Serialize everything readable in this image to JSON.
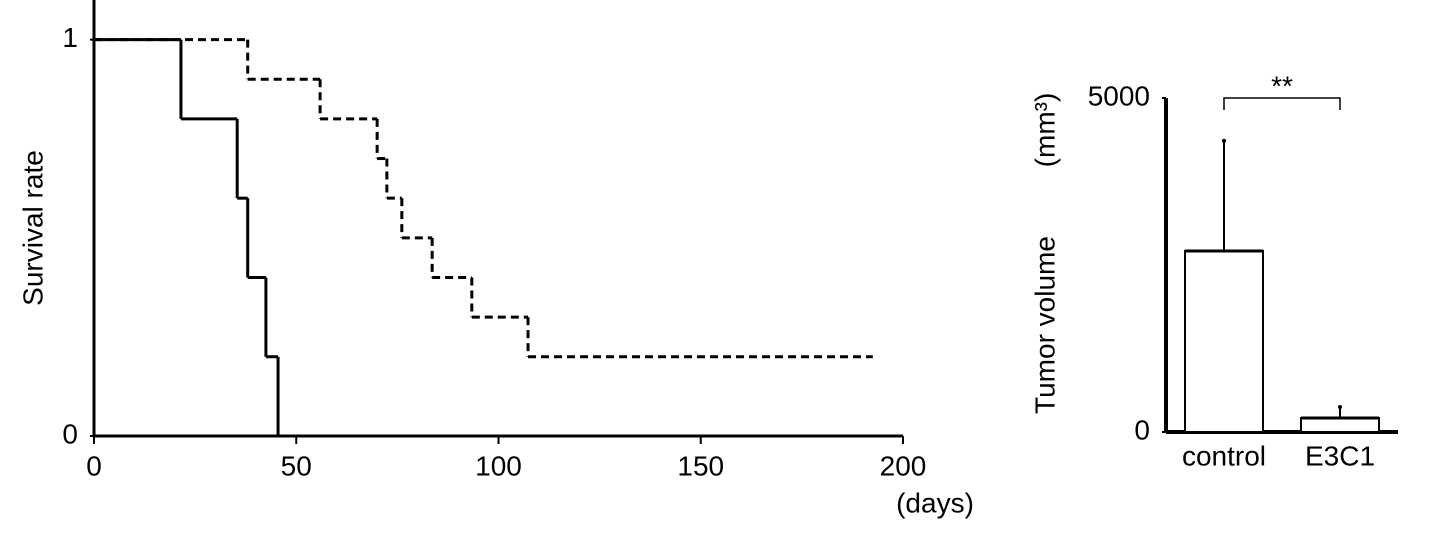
{
  "chart_data": [
    {
      "type": "step",
      "ylabel": "Survival rate",
      "xlabel": "(days)",
      "xlim": [
        0,
        200
      ],
      "xticks": [
        0,
        50,
        100,
        150,
        200
      ],
      "ylim": [
        0,
        1.1
      ],
      "yticks": [
        0,
        1
      ],
      "series": [
        {
          "color": "#000000",
          "dash": false,
          "x": [
            0,
            21.5,
            35.4,
            38,
            42.5,
            45.5
          ],
          "values": [
            1,
            0.8,
            0.6,
            0.4,
            0.2,
            0
          ]
        },
        {
          "color": "#000000",
          "dash": true,
          "x": [
            0,
            38,
            55.9,
            70,
            72.4,
            76.1,
            83.6,
            93.4,
            107.3,
            192.5
          ],
          "values": [
            1,
            0.9,
            0.8,
            0.7,
            0.6,
            0.5,
            0.4,
            0.3,
            0.2,
            0.2
          ]
        }
      ]
    },
    {
      "type": "bar",
      "ylabel": "Tumor volume",
      "yunit": "(mm³)",
      "categories": [
        "control",
        "E3C1"
      ],
      "values": [
        2710,
        210
      ],
      "errors": [
        1650,
        165
      ],
      "color": "#ffffff",
      "ylim": [
        0,
        5000
      ],
      "yticks": [
        0,
        5000
      ],
      "annotation": "**"
    }
  ]
}
